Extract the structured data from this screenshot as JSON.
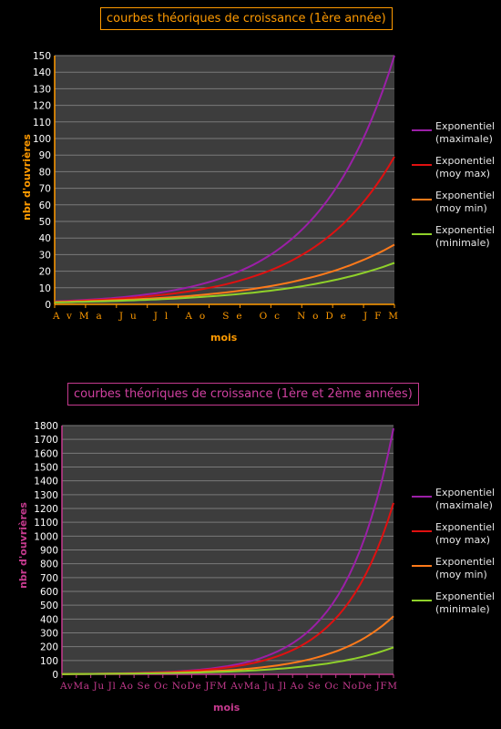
{
  "chart_data": [
    {
      "type": "line",
      "title": "courbes théoriques de croissance (1ère année)",
      "xlabel": "mois",
      "ylabel": "nbr d'ouvrières",
      "ylim": [
        0,
        150
      ],
      "ytick_step": 10,
      "x_ticks": [
        "Av",
        "Ma",
        "Ju",
        "Jl",
        "Ao",
        "Se",
        "Oc",
        "No",
        "De",
        "J",
        "F",
        "M"
      ],
      "x_tick_labels_text": "AvMa Ju Jl Ao Se Oc NoDe JFM",
      "grid": true,
      "legend_placement": "right",
      "axis_color": "#ff9a00",
      "series": [
        {
          "name": "Exponentiel\n(maximale)",
          "color": "#9b1fa7",
          "start": 1.8,
          "end": 150
        },
        {
          "name": "Exponentiel\n(moy max)",
          "color": "#e01010",
          "start": 1.6,
          "end": 89
        },
        {
          "name": "Exponentiel\n(moy min)",
          "color": "#ff7a1a",
          "start": 1.4,
          "end": 36
        },
        {
          "name": "Exponentiel\n(minimale)",
          "color": "#8fd12a",
          "start": 1.2,
          "end": 25
        }
      ]
    },
    {
      "type": "line",
      "title": "courbes théoriques de croissance (1ère et 2ème années)",
      "xlabel": "mois",
      "ylabel": "nbr d'ouvrières",
      "ylim": [
        0,
        1800
      ],
      "ytick_step": 100,
      "x_tick_labels_text": "AvMa Ju Jl Ao Se Oc NoDe JFM AvMa Ju Jl Ao Se Oc NoDe JFM",
      "grid": true,
      "legend_placement": "right",
      "axis_color": "#c53a8e",
      "series": [
        {
          "name": "Exponentiel\n(maximale)",
          "color": "#9b1fa7",
          "start": 2,
          "end": 1780
        },
        {
          "name": "Exponentiel\n(moy max)",
          "color": "#e01010",
          "start": 2,
          "end": 1240
        },
        {
          "name": "Exponentiel\n(moy min)",
          "color": "#ff7a1a",
          "start": 2,
          "end": 420
        },
        {
          "name": "Exponentiel\n(minimale)",
          "color": "#8fd12a",
          "start": 2,
          "end": 195
        }
      ]
    }
  ]
}
